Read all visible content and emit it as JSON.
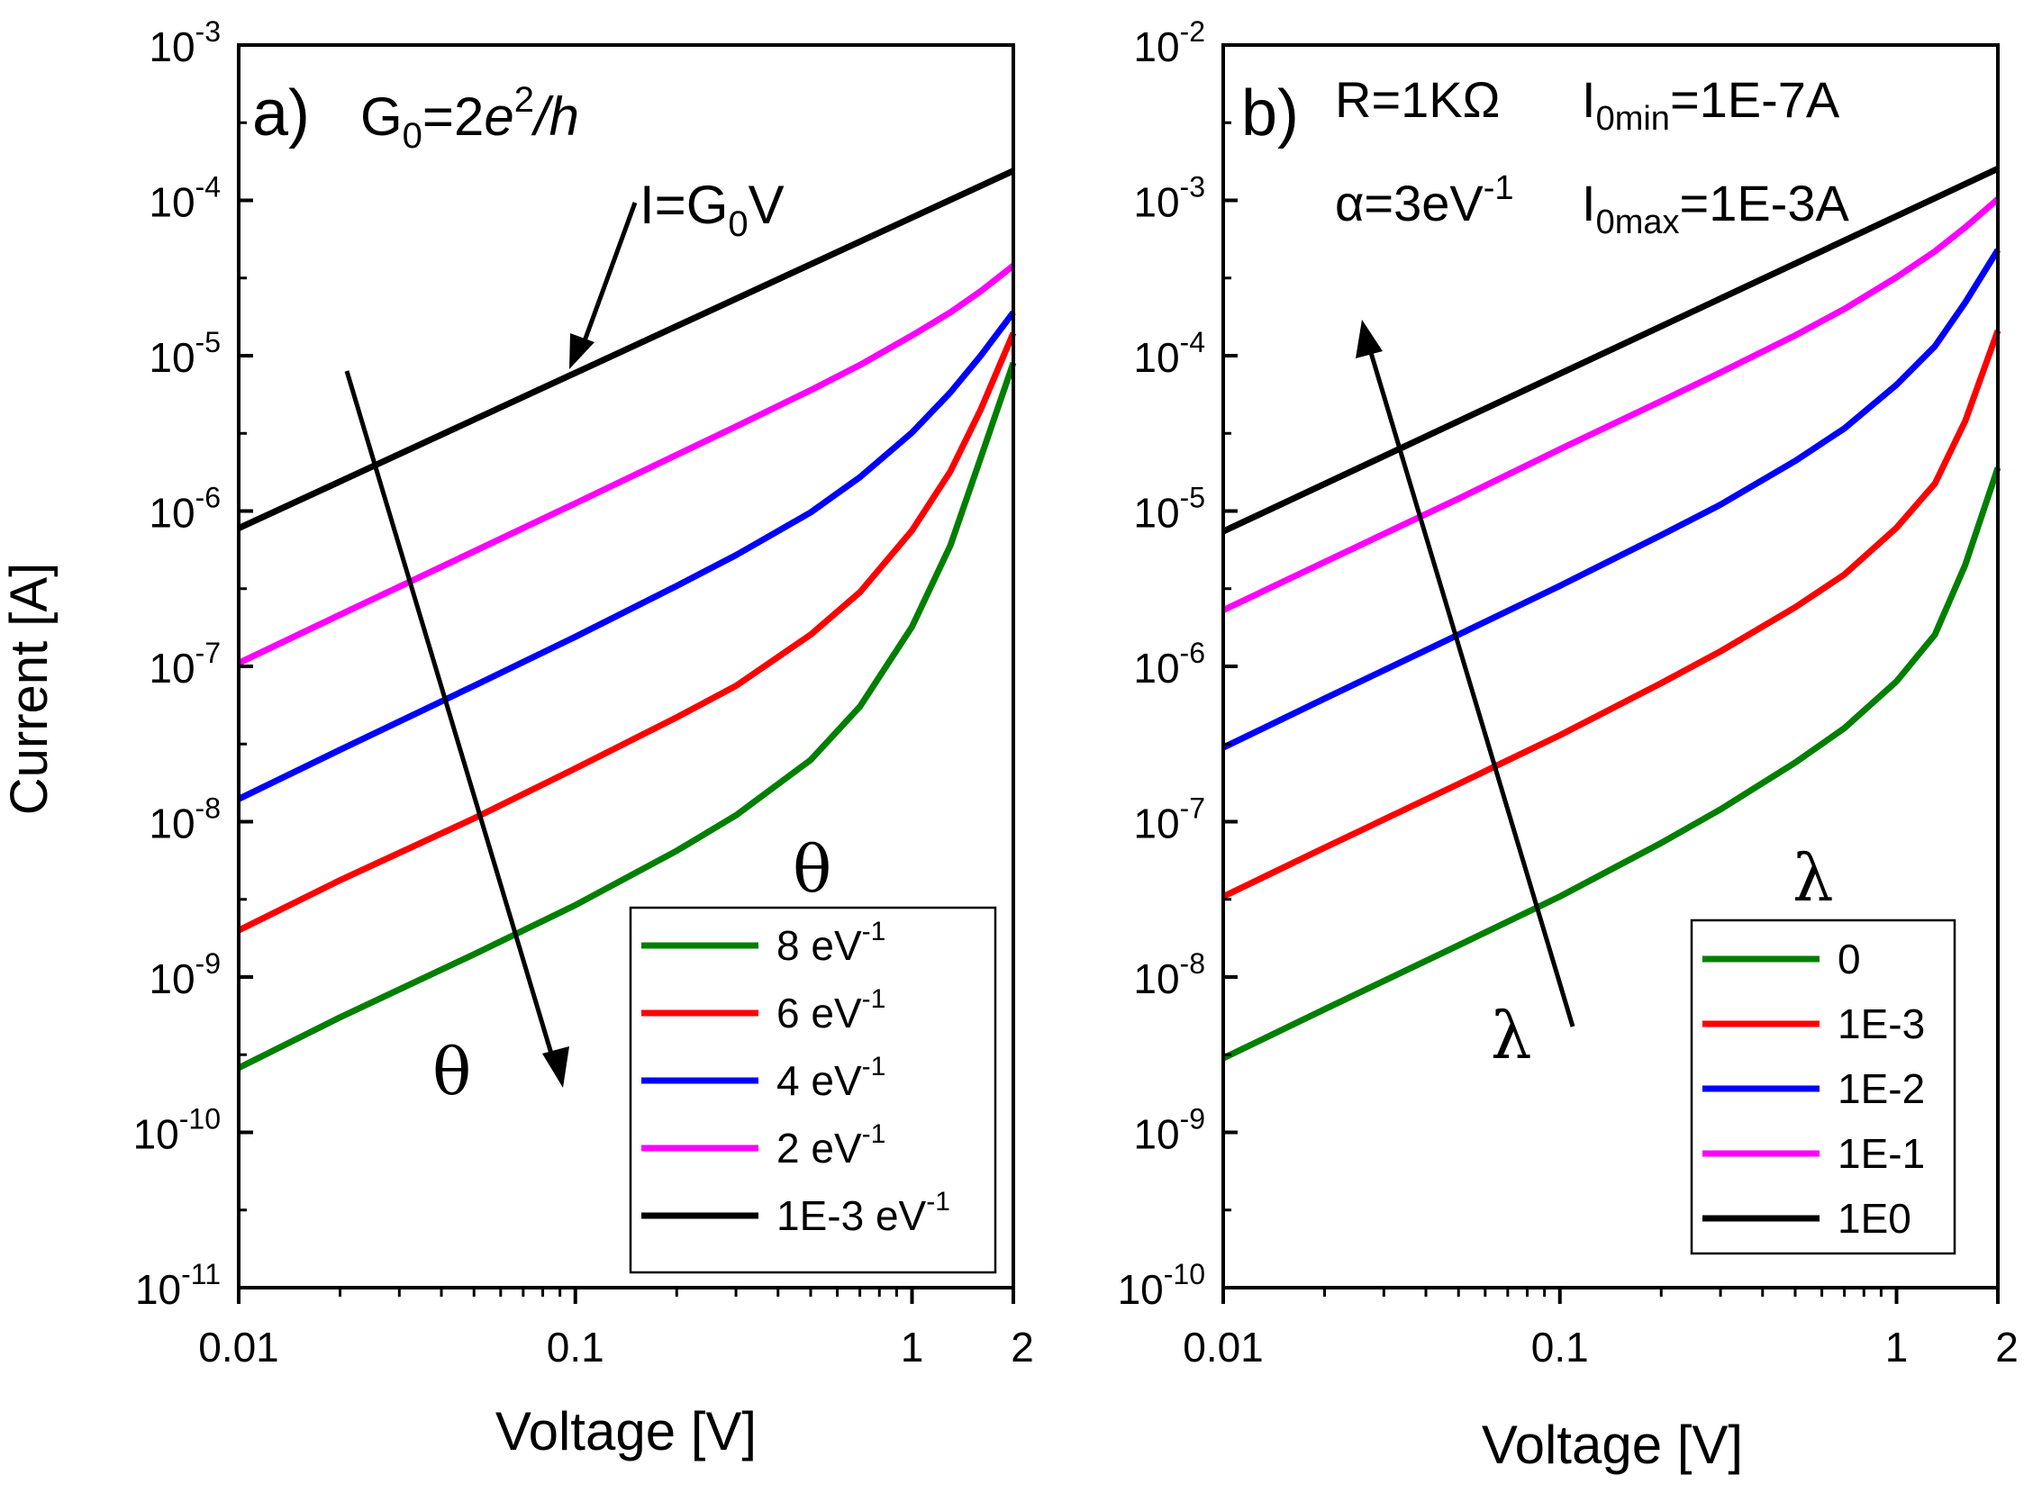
{
  "chart_data": [
    {
      "type": "line",
      "panel_label": "a)",
      "title": "",
      "xlabel": "Voltage [V]",
      "ylabel": "Current [A]",
      "xscale": "log",
      "yscale": "log",
      "xlim": [
        0.01,
        2
      ],
      "ylim": [
        1e-11,
        0.001
      ],
      "x_ticks": [
        "0.01",
        "0.1",
        "1",
        "2"
      ],
      "y_ticks": [
        "-11",
        "-10",
        "-9",
        "-8",
        "-7",
        "-6",
        "-5",
        "-4",
        "-3"
      ],
      "y_tick_base": "10",
      "annotations": {
        "formula_main": "G",
        "formula_sub": "0",
        "formula_rest": "=2",
        "formula_e": "e",
        "formula_sup": "2",
        "formula_h": "/h",
        "ohm_main": "I=G",
        "ohm_sub": "0",
        "ohm_end": "V",
        "arrow_symbol": "θ",
        "legend_title": "θ"
      },
      "legend": {
        "position": "bottom-right"
      },
      "series": [
        {
          "name": "8 eV",
          "label_main": "8 eV",
          "label_sup": "-1",
          "color": "#007f00",
          "x": [
            0.01,
            0.02,
            0.05,
            0.1,
            0.2,
            0.3,
            0.5,
            0.7,
            1.0,
            1.3,
            1.6,
            2.0
          ],
          "y": [
            2.6e-10,
            5.5e-10,
            1.4e-09,
            2.9e-09,
            6.5e-09,
            1.1e-08,
            2.5e-08,
            5.5e-08,
            1.8e-07,
            6e-07,
            2.2e-06,
            9e-06
          ]
        },
        {
          "name": "6 eV",
          "label_main": "6 eV",
          "label_sup": "-1",
          "color": "#ff0000",
          "x": [
            0.01,
            0.02,
            0.05,
            0.1,
            0.2,
            0.3,
            0.5,
            0.7,
            1.0,
            1.3,
            1.6,
            2.0
          ],
          "y": [
            2e-09,
            4.2e-09,
            1.05e-08,
            2.2e-08,
            4.7e-08,
            7.5e-08,
            1.6e-07,
            3e-07,
            7.5e-07,
            1.8e-06,
            4.5e-06,
            1.4e-05
          ]
        },
        {
          "name": "4 eV",
          "label_main": "4 eV",
          "label_sup": "-1",
          "color": "#0000ff",
          "x": [
            0.01,
            0.02,
            0.05,
            0.1,
            0.2,
            0.3,
            0.5,
            0.7,
            1.0,
            1.3,
            1.6,
            2.0
          ],
          "y": [
            1.4e-08,
            2.9e-08,
            7.5e-08,
            1.55e-07,
            3.3e-07,
            5.2e-07,
            9.8e-07,
            1.65e-06,
            3.2e-06,
            5.8e-06,
            1e-05,
            1.9e-05
          ]
        },
        {
          "name": "2 eV",
          "label_main": "2 eV",
          "label_sup": "-1",
          "color": "#ff00ff",
          "x": [
            0.01,
            0.02,
            0.05,
            0.1,
            0.2,
            0.3,
            0.5,
            0.7,
            1.0,
            1.3,
            1.6,
            2.0
          ],
          "y": [
            1.05e-07,
            2.15e-07,
            5.5e-07,
            1.12e-06,
            2.3e-06,
            3.5e-06,
            6e-06,
            8.7e-06,
            1.35e-05,
            1.9e-05,
            2.6e-05,
            3.8e-05
          ]
        },
        {
          "name": "1E-3 eV",
          "label_main": "1E-3 eV",
          "label_sup": "-1",
          "color": "#000000",
          "x": [
            0.01,
            2.0
          ],
          "y": [
            7.75e-07,
            0.000155
          ]
        }
      ]
    },
    {
      "type": "line",
      "panel_label": "b)",
      "title": "",
      "xlabel": "Voltage [V]",
      "ylabel": "",
      "xscale": "log",
      "yscale": "log",
      "xlim": [
        0.01,
        2
      ],
      "ylim": [
        1e-10,
        0.01
      ],
      "x_ticks": [
        "0.01",
        "0.1",
        "1",
        "2"
      ],
      "y_ticks": [
        "-10",
        "-9",
        "-8",
        "-7",
        "-6",
        "-5",
        "-4",
        "-3",
        "-2"
      ],
      "y_tick_base": "10",
      "annotations": {
        "r_text": "R=1KΩ",
        "i0min_main": "I",
        "i0min_sub": "0min",
        "i0min_rest": "=1E-7A",
        "alpha_text": "α=3eV",
        "alpha_sup": "-1",
        "i0max_main": "I",
        "i0max_sub": "0max",
        "i0max_rest": "=1E-3A",
        "arrow_symbol": "λ",
        "legend_title": "λ"
      },
      "legend": {
        "position": "bottom-right"
      },
      "series": [
        {
          "name": "0",
          "color": "#007f00",
          "x": [
            0.01,
            0.02,
            0.05,
            0.1,
            0.2,
            0.3,
            0.5,
            0.7,
            1.0,
            1.3,
            1.6,
            2.0
          ],
          "y": [
            3e-09,
            6.2e-09,
            1.6e-08,
            3.3e-08,
            7.3e-08,
            1.2e-07,
            2.4e-07,
            4e-07,
            8e-07,
            1.6e-06,
            4.5e-06,
            1.9e-05
          ]
        },
        {
          "name": "1E-3",
          "color": "#ff0000",
          "x": [
            0.01,
            0.02,
            0.05,
            0.1,
            0.2,
            0.3,
            0.5,
            0.7,
            1.0,
            1.3,
            1.6,
            2.0
          ],
          "y": [
            3.3e-08,
            6.8e-08,
            1.75e-07,
            3.6e-07,
            7.8e-07,
            1.25e-06,
            2.4e-06,
            3.9e-06,
            7.8e-06,
            1.5e-05,
            3.8e-05,
            0.000145
          ]
        },
        {
          "name": "1E-2",
          "color": "#0000ff",
          "x": [
            0.01,
            0.02,
            0.05,
            0.1,
            0.2,
            0.3,
            0.5,
            0.7,
            1.0,
            1.3,
            1.6,
            2.0
          ],
          "y": [
            3e-07,
            6.2e-07,
            1.6e-06,
            3.3e-06,
            7e-06,
            1.1e-05,
            2.1e-05,
            3.4e-05,
            6.5e-05,
            0.000115,
            0.00022,
            0.00048
          ]
        },
        {
          "name": "1E-1",
          "color": "#ff00ff",
          "x": [
            0.01,
            0.02,
            0.05,
            0.1,
            0.2,
            0.3,
            0.5,
            0.7,
            1.0,
            1.3,
            1.6,
            2.0
          ],
          "y": [
            2.3e-06,
            4.7e-06,
            1.2e-05,
            2.5e-05,
            5.1e-05,
            7.8e-05,
            0.000135,
            0.0002,
            0.00032,
            0.00047,
            0.00067,
            0.00102
          ]
        },
        {
          "name": "1E0",
          "color": "#000000",
          "x": [
            0.01,
            2.0
          ],
          "y": [
            7.4e-06,
            0.0016
          ]
        }
      ]
    }
  ]
}
